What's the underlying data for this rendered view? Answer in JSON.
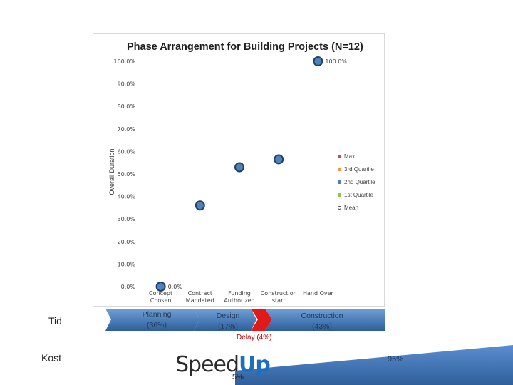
{
  "chart_data": {
    "type": "scatter",
    "title": "Phase Arrangement for Building Projects (N=12)",
    "ylabel": "Overall Duration",
    "ylim": [
      0,
      100
    ],
    "yticks": [
      "0.0%",
      "10.0%",
      "20.0%",
      "30.0%",
      "40.0%",
      "50.0%",
      "60.0%",
      "70.0%",
      "80.0%",
      "90.0%",
      "100.0%"
    ],
    "categories": [
      [
        "Concept",
        "Chosen"
      ],
      [
        "Contract",
        "Mandated"
      ],
      [
        "Funding",
        "Authorized"
      ],
      [
        "Construction",
        "start"
      ],
      [
        "Hand Over"
      ]
    ],
    "series": [
      {
        "name": "Mean",
        "values": [
          0.0,
          36,
          53,
          56.5,
          100.0
        ],
        "point_labels": [
          "0.0%",
          "",
          "",
          "",
          "100.0%"
        ]
      }
    ],
    "legend": [
      {
        "label": "Max",
        "color": "#c0504d",
        "marker": "square"
      },
      {
        "label": "3rd Quartile",
        "color": "#f79646",
        "marker": "square"
      },
      {
        "label": "2nd Quartile",
        "color": "#4f81bd",
        "marker": "square"
      },
      {
        "label": "1st Quartile",
        "color": "#9bbb59",
        "marker": "square"
      },
      {
        "label": "Mean",
        "color": "#444444",
        "marker": "circle"
      }
    ],
    "legend_position": "right",
    "marker_color": "#4f81bd",
    "marker_edge": "#243f60"
  },
  "labels": {
    "tid": "Tid",
    "kost": "Kost"
  },
  "timeline": {
    "phases": [
      {
        "name": "Planning",
        "pct": "(36%)"
      },
      {
        "name": "Design",
        "pct": "(17%)"
      },
      {
        "name": "Construction",
        "pct": "(43%)"
      }
    ],
    "delay": "Delay (4%)",
    "colors": {
      "bar": "#4a7fbf",
      "bar_dark": "#2e5f9a",
      "delay": "#e01a1a"
    }
  },
  "cost": {
    "left_pct": "5%",
    "right_pct": "95%"
  },
  "logo": {
    "speed": "Speed",
    "up": "Up"
  }
}
